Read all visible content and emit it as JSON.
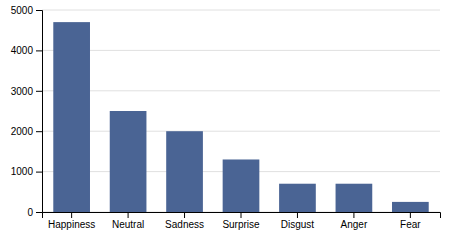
{
  "chart_data": {
    "type": "bar",
    "categories": [
      "Happiness",
      "Neutral",
      "Sadness",
      "Surprise",
      "Disgust",
      "Anger",
      "Fear"
    ],
    "values": [
      4700,
      2500,
      2000,
      1300,
      700,
      700,
      250
    ],
    "color": "#4a6494",
    "ylim": [
      0,
      5000
    ],
    "yticks": [
      0,
      1000,
      2000,
      3000,
      4000,
      5000
    ],
    "grid": true
  }
}
